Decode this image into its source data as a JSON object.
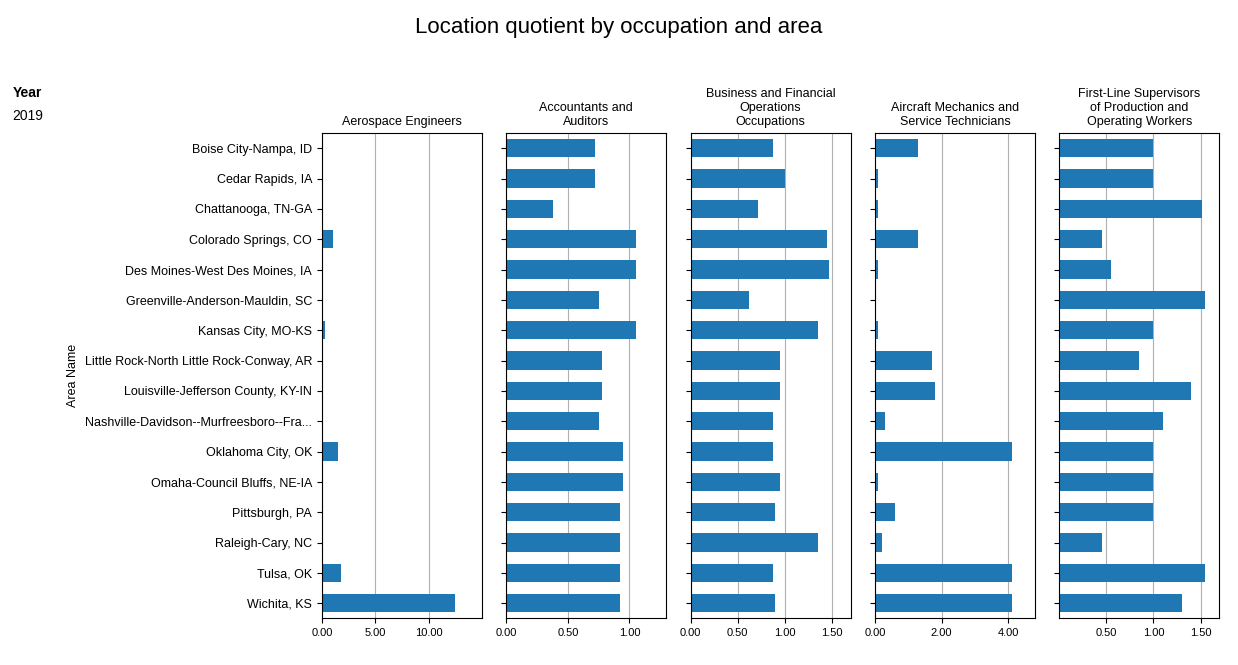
{
  "title": "Location quotient by occupation and area",
  "annotations": [
    "Year",
    "2019"
  ],
  "chart_data": [
    {
      "type": "bar",
      "orientation": "horizontal",
      "title": "Aerospace Engineers",
      "ylabel": "Area Name",
      "grid": true,
      "categories": [
        "Boise City-Nampa, ID",
        "Cedar Rapids, IA",
        "Chattanooga, TN-GA",
        "Colorado Springs, CO",
        "Des Moines-West Des Moines, IA",
        "Greenville-Anderson-Mauldin, SC",
        "Kansas City, MO-KS",
        "Little Rock-North Little Rock-Conway, AR",
        "Louisville-Jefferson County, KY-IN",
        "Nashville-Davidson--Murfreesboro--Fra...",
        "Oklahoma City, OK",
        "Omaha-Council Bluffs, NE-IA",
        "Pittsburgh, PA",
        "Raleigh-Cary, NC",
        "Tulsa, OK",
        "Wichita, KS"
      ],
      "values": [
        0.0,
        0.0,
        0.0,
        1.0,
        0.0,
        0.0,
        0.3,
        0.0,
        0.0,
        0.0,
        1.5,
        0.05,
        0.0,
        0.0,
        1.8,
        12.5
      ],
      "xlim": [
        0,
        15.0
      ],
      "xticks": [
        {
          "value": 0.0,
          "label": "0.00"
        },
        {
          "value": 5.0,
          "label": "5.00"
        },
        {
          "value": 10.0,
          "label": "10.00"
        }
      ]
    },
    {
      "type": "bar",
      "orientation": "horizontal",
      "title": "Accountants and\nAuditors",
      "grid": true,
      "categories": [
        "Boise City-Nampa, ID",
        "Cedar Rapids, IA",
        "Chattanooga, TN-GA",
        "Colorado Springs, CO",
        "Des Moines-West Des Moines, IA",
        "Greenville-Anderson-Mauldin, SC",
        "Kansas City, MO-KS",
        "Little Rock-North Little Rock-Conway, AR",
        "Louisville-Jefferson County, KY-IN",
        "Nashville-Davidson--Murfreesboro--Fra...",
        "Oklahoma City, OK",
        "Omaha-Council Bluffs, NE-IA",
        "Pittsburgh, PA",
        "Raleigh-Cary, NC",
        "Tulsa, OK",
        "Wichita, KS"
      ],
      "values": [
        0.72,
        0.72,
        0.38,
        1.05,
        1.05,
        0.75,
        1.05,
        0.78,
        0.78,
        0.75,
        0.95,
        0.95,
        0.92,
        0.92,
        0.92,
        0.92
      ],
      "xlim": [
        0,
        1.3
      ],
      "xticks": [
        {
          "value": 0.0,
          "label": "0.00"
        },
        {
          "value": 0.5,
          "label": "0.50"
        },
        {
          "value": 1.0,
          "label": "1.00"
        }
      ]
    },
    {
      "type": "bar",
      "orientation": "horizontal",
      "title": "Business and Financial\nOperations\nOccupations",
      "grid": true,
      "categories": [
        "Boise City-Nampa, ID",
        "Cedar Rapids, IA",
        "Chattanooga, TN-GA",
        "Colorado Springs, CO",
        "Des Moines-West Des Moines, IA",
        "Greenville-Anderson-Mauldin, SC",
        "Kansas City, MO-KS",
        "Little Rock-North Little Rock-Conway, AR",
        "Louisville-Jefferson County, KY-IN",
        "Nashville-Davidson--Murfreesboro--Fra...",
        "Oklahoma City, OK",
        "Omaha-Council Bluffs, NE-IA",
        "Pittsburgh, PA",
        "Raleigh-Cary, NC",
        "Tulsa, OK",
        "Wichita, KS"
      ],
      "values": [
        0.88,
        1.0,
        0.72,
        1.45,
        1.47,
        0.62,
        1.35,
        0.95,
        0.95,
        0.88,
        0.88,
        0.95,
        0.9,
        1.35,
        0.88,
        0.9
      ],
      "xlim": [
        0,
        1.7
      ],
      "xticks": [
        {
          "value": 0.0,
          "label": "0.00"
        },
        {
          "value": 0.5,
          "label": "0.50"
        },
        {
          "value": 1.0,
          "label": "1.00"
        },
        {
          "value": 1.5,
          "label": "1.50"
        }
      ]
    },
    {
      "type": "bar",
      "orientation": "horizontal",
      "title": "Aircraft Mechanics and\nService Technicians",
      "grid": true,
      "categories": [
        "Boise City-Nampa, ID",
        "Cedar Rapids, IA",
        "Chattanooga, TN-GA",
        "Colorado Springs, CO",
        "Des Moines-West Des Moines, IA",
        "Greenville-Anderson-Mauldin, SC",
        "Kansas City, MO-KS",
        "Little Rock-North Little Rock-Conway, AR",
        "Louisville-Jefferson County, KY-IN",
        "Nashville-Davidson--Murfreesboro--Fra...",
        "Oklahoma City, OK",
        "Omaha-Council Bluffs, NE-IA",
        "Pittsburgh, PA",
        "Raleigh-Cary, NC",
        "Tulsa, OK",
        "Wichita, KS"
      ],
      "values": [
        1.3,
        0.1,
        0.1,
        1.3,
        0.1,
        0.0,
        0.1,
        1.7,
        1.8,
        0.3,
        4.1,
        0.1,
        0.6,
        0.2,
        4.1,
        4.1
      ],
      "xlim": [
        0,
        4.8
      ],
      "xticks": [
        {
          "value": 0.0,
          "label": "0.00"
        },
        {
          "value": 2.0,
          "label": "2.00"
        },
        {
          "value": 4.0,
          "label": "4.00"
        }
      ]
    },
    {
      "type": "bar",
      "orientation": "horizontal",
      "title": "First-Line Supervisors\nof Production and\nOperating Workers",
      "grid": true,
      "categories": [
        "Boise City-Nampa, ID",
        "Cedar Rapids, IA",
        "Chattanooga, TN-GA",
        "Colorado Springs, CO",
        "Des Moines-West Des Moines, IA",
        "Greenville-Anderson-Mauldin, SC",
        "Kansas City, MO-KS",
        "Little Rock-North Little Rock-Conway, AR",
        "Louisville-Jefferson County, KY-IN",
        "Nashville-Davidson--Murfreesboro--Fra...",
        "Oklahoma City, OK",
        "Omaha-Council Bluffs, NE-IA",
        "Pittsburgh, PA",
        "Raleigh-Cary, NC",
        "Tulsa, OK",
        "Wichita, KS"
      ],
      "values": [
        1.0,
        1.0,
        1.52,
        0.45,
        0.55,
        1.55,
        1.0,
        0.85,
        1.4,
        1.1,
        1.0,
        1.0,
        1.0,
        0.45,
        1.55,
        1.3
      ],
      "xlim": [
        0,
        1.7
      ],
      "xticks": [
        {
          "value": 0.5,
          "label": "0.50"
        },
        {
          "value": 1.0,
          "label": "1.00"
        },
        {
          "value": 1.5,
          "label": "1.50"
        }
      ]
    }
  ]
}
